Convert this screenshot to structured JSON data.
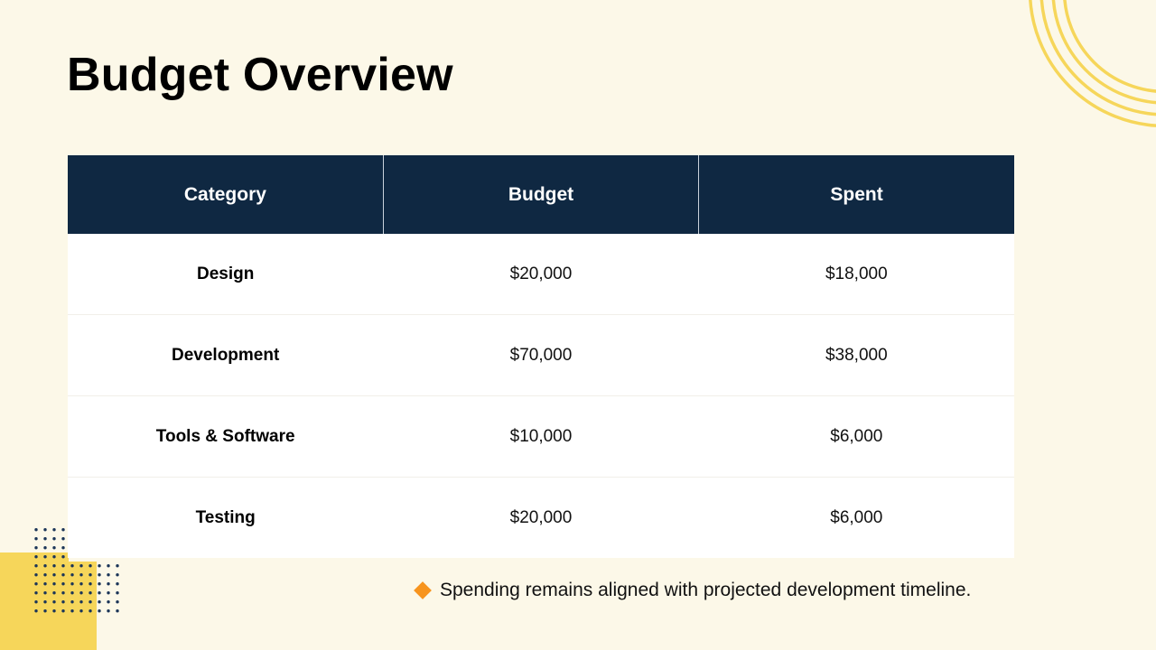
{
  "slide": {
    "title": "Budget Overview",
    "colors": {
      "background": "#fcf8e8",
      "header_bg": "#0f2842",
      "accent_yellow": "#f6d65a",
      "bullet_orange": "#f7941d",
      "dot_navy": "#1b3558"
    }
  },
  "table": {
    "headers": [
      "Category",
      "Budget",
      "Spent"
    ],
    "rows": [
      {
        "category": "Design",
        "budget": "$20,000",
        "spent": "$18,000"
      },
      {
        "category": "Development",
        "budget": "$70,000",
        "spent": "$38,000"
      },
      {
        "category": "Tools & Software",
        "budget": "$10,000",
        "spent": "$6,000"
      },
      {
        "category": "Testing",
        "budget": "$20,000",
        "spent": "$6,000"
      }
    ]
  },
  "note": {
    "icon": "diamond-bullet-icon",
    "text": "Spending remains aligned with projected development timeline."
  }
}
